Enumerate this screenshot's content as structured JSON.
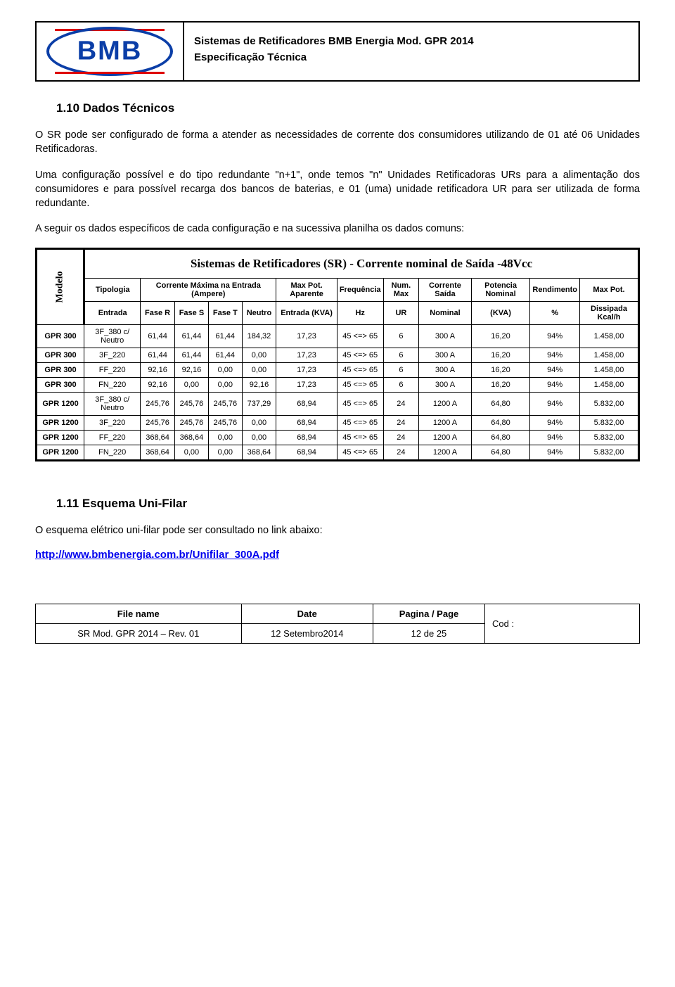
{
  "header": {
    "logo_text": "BMB",
    "title_line1": "Sistemas de Retificadores BMB Energia Mod. GPR 2014",
    "title_line2": "Especificação Técnica"
  },
  "section1": {
    "heading": "1.10 Dados Técnicos",
    "p1": "O SR pode ser configurado de forma a atender as necessidades de corrente dos consumidores utilizando de 01 até 06 Unidades Retificadoras.",
    "p2": "Uma configuração possível e do tipo redundante \"n+1\", onde temos \"n\" Unidades Retificadoras URs para a alimentação dos consumidores e para possível recarga dos bancos de baterias, e 01 (uma) unidade retificadora UR para ser utilizada de forma redundante.",
    "p3": "A seguir os dados específicos de cada configuração e na sucessiva planilha os dados comuns:"
  },
  "table": {
    "title": "Sistemas de Retificadores (SR) - Corrente nominal de Saída -48Vcc",
    "rot_label": "Modelo",
    "h1": {
      "tipologia": "Tipologia",
      "corrente_max": "Corrente Máxima na Entrada (Ampere)",
      "max_pot_ap": "Max Pot. Aparente",
      "freq": "Frequência",
      "num_max": "Num. Max",
      "corr_saida": "Corrente Saída",
      "pot_nom": "Potencia Nominal",
      "rend": "Rendimento",
      "max_pot": "Max Pot."
    },
    "h2": {
      "entrada": "Entrada",
      "fr": "Fase R",
      "fs": "Fase S",
      "ft": "Fase T",
      "neutro": "Neutro",
      "ent_kva": "Entrada (KVA)",
      "hz": "Hz",
      "ur": "UR",
      "nominal": "Nominal",
      "kva": "(KVA)",
      "pct": "%",
      "diss": "Dissipada Kcal/h"
    },
    "rows": [
      {
        "m": "GPR 300",
        "t": "3F_380 c/ Neutro",
        "r": "61,44",
        "s": "61,44",
        "ft": "61,44",
        "n": "184,32",
        "kva": "17,23",
        "hz": "45 <=> 65",
        "ur": "6",
        "nom": "300 A",
        "pn": "16,20",
        "pct": "94%",
        "d": "1.458,00"
      },
      {
        "m": "GPR 300",
        "t": "3F_220",
        "r": "61,44",
        "s": "61,44",
        "ft": "61,44",
        "n": "0,00",
        "kva": "17,23",
        "hz": "45 <=> 65",
        "ur": "6",
        "nom": "300 A",
        "pn": "16,20",
        "pct": "94%",
        "d": "1.458,00"
      },
      {
        "m": "GPR 300",
        "t": "FF_220",
        "r": "92,16",
        "s": "92,16",
        "ft": "0,00",
        "n": "0,00",
        "kva": "17,23",
        "hz": "45 <=> 65",
        "ur": "6",
        "nom": "300 A",
        "pn": "16,20",
        "pct": "94%",
        "d": "1.458,00"
      },
      {
        "m": "GPR 300",
        "t": "FN_220",
        "r": "92,16",
        "s": "0,00",
        "ft": "0,00",
        "n": "92,16",
        "kva": "17,23",
        "hz": "45 <=> 65",
        "ur": "6",
        "nom": "300 A",
        "pn": "16,20",
        "pct": "94%",
        "d": "1.458,00"
      },
      {
        "m": "GPR 1200",
        "t": "3F_380 c/ Neutro",
        "r": "245,76",
        "s": "245,76",
        "ft": "245,76",
        "n": "737,29",
        "kva": "68,94",
        "hz": "45 <=> 65",
        "ur": "24",
        "nom": "1200 A",
        "pn": "64,80",
        "pct": "94%",
        "d": "5.832,00"
      },
      {
        "m": "GPR 1200",
        "t": "3F_220",
        "r": "245,76",
        "s": "245,76",
        "ft": "245,76",
        "n": "0,00",
        "kva": "68,94",
        "hz": "45 <=> 65",
        "ur": "24",
        "nom": "1200 A",
        "pn": "64,80",
        "pct": "94%",
        "d": "5.832,00"
      },
      {
        "m": "GPR 1200",
        "t": "FF_220",
        "r": "368,64",
        "s": "368,64",
        "ft": "0,00",
        "n": "0,00",
        "kva": "68,94",
        "hz": "45 <=> 65",
        "ur": "24",
        "nom": "1200 A",
        "pn": "64,80",
        "pct": "94%",
        "d": "5.832,00"
      },
      {
        "m": "GPR 1200",
        "t": "FN_220",
        "r": "368,64",
        "s": "0,00",
        "ft": "0,00",
        "n": "368,64",
        "kva": "68,94",
        "hz": "45 <=> 65",
        "ur": "24",
        "nom": "1200 A",
        "pn": "64,80",
        "pct": "94%",
        "d": "5.832,00"
      }
    ]
  },
  "section2": {
    "heading": "1.11 Esquema Uni-Filar",
    "p1": "O esquema elétrico uni-filar pode ser consultado no link abaixo:",
    "link": "http://www.bmbenergia.com.br/Unifilar_300A.pdf"
  },
  "footer": {
    "h_file": "File name",
    "h_date": "Date",
    "h_page": "Pagina / Page",
    "h_cod": "Cod :",
    "file": "SR Mod. GPR 2014 – Rev. 01",
    "date": "12 Setembro2014",
    "page": "12 de 25"
  }
}
